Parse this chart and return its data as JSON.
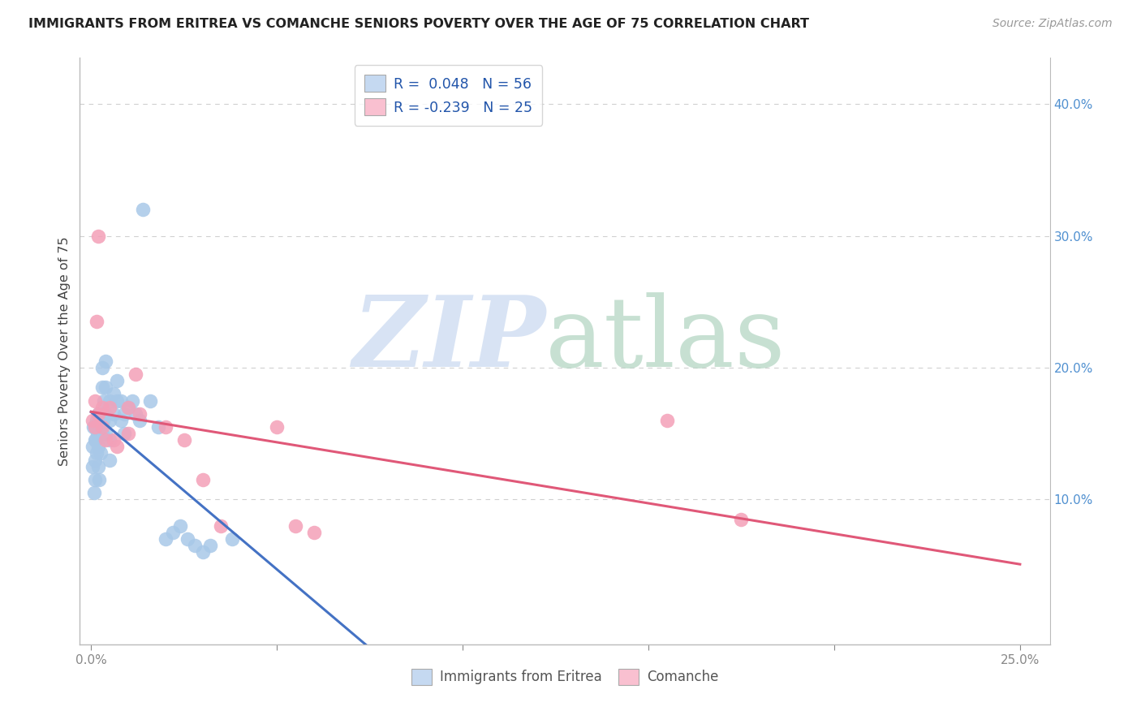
{
  "title": "IMMIGRANTS FROM ERITREA VS COMANCHE SENIORS POVERTY OVER THE AGE OF 75 CORRELATION CHART",
  "source": "Source: ZipAtlas.com",
  "ylabel": "Seniors Poverty Over the Age of 75",
  "xlabel_blue": "Immigrants from Eritrea",
  "xlabel_pink": "Comanche",
  "blue_R": 0.048,
  "blue_N": 56,
  "pink_R": -0.239,
  "pink_N": 25,
  "blue_color": "#a8c8e8",
  "pink_color": "#f4a0b8",
  "blue_line_color": "#4472c4",
  "pink_line_color": "#e05878",
  "blue_fill_color": "#c5d9f1",
  "pink_fill_color": "#f9c0d0",
  "blue_x": [
    0.0004,
    0.0005,
    0.0006,
    0.0008,
    0.001,
    0.001,
    0.001,
    0.001,
    0.0012,
    0.0013,
    0.0015,
    0.0015,
    0.0018,
    0.002,
    0.002,
    0.002,
    0.002,
    0.0022,
    0.0025,
    0.003,
    0.003,
    0.003,
    0.003,
    0.0032,
    0.0035,
    0.004,
    0.004,
    0.004,
    0.004,
    0.005,
    0.005,
    0.005,
    0.005,
    0.006,
    0.006,
    0.007,
    0.007,
    0.008,
    0.008,
    0.009,
    0.009,
    0.01,
    0.011,
    0.012,
    0.013,
    0.014,
    0.016,
    0.018,
    0.02,
    0.022,
    0.024,
    0.026,
    0.028,
    0.03,
    0.032,
    0.038
  ],
  "blue_y": [
    0.14,
    0.125,
    0.155,
    0.105,
    0.155,
    0.145,
    0.13,
    0.115,
    0.155,
    0.145,
    0.16,
    0.135,
    0.15,
    0.165,
    0.15,
    0.14,
    0.125,
    0.115,
    0.135,
    0.2,
    0.185,
    0.165,
    0.15,
    0.16,
    0.175,
    0.205,
    0.185,
    0.165,
    0.15,
    0.175,
    0.16,
    0.145,
    0.13,
    0.18,
    0.165,
    0.19,
    0.175,
    0.175,
    0.16,
    0.165,
    0.15,
    0.17,
    0.175,
    0.165,
    0.16,
    0.32,
    0.175,
    0.155,
    0.07,
    0.075,
    0.08,
    0.07,
    0.065,
    0.06,
    0.065,
    0.07
  ],
  "pink_x": [
    0.0005,
    0.001,
    0.001,
    0.0015,
    0.002,
    0.002,
    0.003,
    0.003,
    0.004,
    0.005,
    0.006,
    0.007,
    0.01,
    0.01,
    0.012,
    0.013,
    0.02,
    0.025,
    0.03,
    0.035,
    0.05,
    0.055,
    0.06,
    0.155,
    0.175
  ],
  "pink_y": [
    0.16,
    0.175,
    0.155,
    0.235,
    0.165,
    0.3,
    0.17,
    0.155,
    0.145,
    0.17,
    0.145,
    0.14,
    0.17,
    0.15,
    0.195,
    0.165,
    0.155,
    0.145,
    0.115,
    0.08,
    0.155,
    0.08,
    0.075,
    0.16,
    0.085
  ]
}
